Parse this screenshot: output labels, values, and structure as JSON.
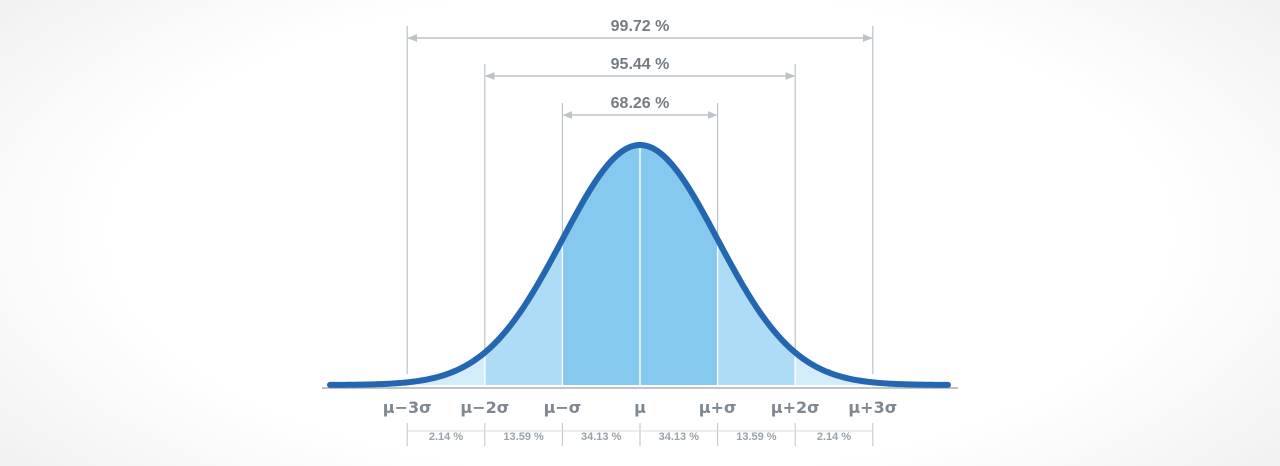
{
  "chart_data": {
    "type": "area",
    "title": "",
    "distribution": "normal",
    "xlim": [
      -4,
      4
    ],
    "ticks": [
      {
        "x": -3,
        "label": "μ−3σ"
      },
      {
        "x": -2,
        "label": "μ−2σ"
      },
      {
        "x": -1,
        "label": "μ−σ"
      },
      {
        "x": 0,
        "label": "μ"
      },
      {
        "x": 1,
        "label": "μ+σ"
      },
      {
        "x": 2,
        "label": "μ+2σ"
      },
      {
        "x": 3,
        "label": "μ+3σ"
      }
    ],
    "bands": [
      {
        "from": -3,
        "to": -2,
        "label": "2.14 %",
        "value": 2.14
      },
      {
        "from": -2,
        "to": -1,
        "label": "13.59 %",
        "value": 13.59
      },
      {
        "from": -1,
        "to": 0,
        "label": "34.13 %",
        "value": 34.13
      },
      {
        "from": 0,
        "to": 1,
        "label": "34.13 %",
        "value": 34.13
      },
      {
        "from": 1,
        "to": 2,
        "label": "13.59 %",
        "value": 13.59
      },
      {
        "from": 2,
        "to": 3,
        "label": "2.14 %",
        "value": 2.14
      }
    ],
    "ranges": [
      {
        "from": -3,
        "to": 3,
        "label": "99.72 %",
        "value": 99.72
      },
      {
        "from": -2,
        "to": 2,
        "label": "95.44 %",
        "value": 95.44
      },
      {
        "from": -1,
        "to": 1,
        "label": "68.26 %",
        "value": 68.26
      }
    ],
    "colors": {
      "curve": "#2566b0",
      "band_inner": "#85c9ee",
      "band_middle": "#aedbf6",
      "band_outer": "#d2ecf9",
      "guide": "#bcc3c9",
      "axis": "#a9b0b6",
      "tick_text": "#7f8890",
      "pct_text": "#737c84"
    }
  }
}
